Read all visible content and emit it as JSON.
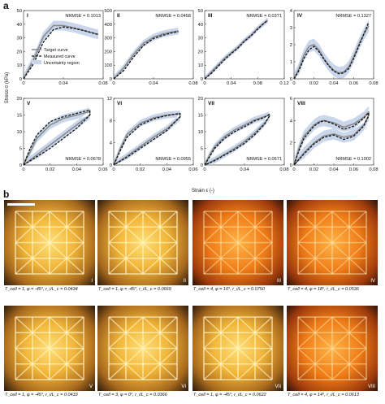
{
  "panel_a_label": "a",
  "panel_b_label": "b",
  "y_axis_label": "Stress σ (kPa)",
  "x_axis_label": "Strain ε (-)",
  "legend": [
    "Target curve",
    "Measured curve",
    "Uncertainty region"
  ],
  "colors": {
    "target": "#8a8a8a",
    "measured": "#111111",
    "uncertainty": "#c9d6ec"
  },
  "chart_data": [
    {
      "type": "line",
      "panel": "I",
      "nrmse_label": "NRMSE = 0.1013",
      "nrmse_pos": "top-right",
      "xlim": [
        0,
        0.08
      ],
      "xticks": [
        "0",
        "0.04",
        "0.08"
      ],
      "xtickvals": [
        0,
        0.04,
        0.08
      ],
      "ylim": [
        0,
        50
      ],
      "yticks": [
        "0",
        "10",
        "20",
        "30",
        "40",
        "50"
      ],
      "ytickvals": [
        0,
        10,
        20,
        30,
        40,
        50
      ],
      "show_xticks": false,
      "target": [
        [
          0,
          0
        ],
        [
          0.01,
          14
        ],
        [
          0.02,
          31
        ],
        [
          0.03,
          39
        ],
        [
          0.04,
          39
        ],
        [
          0.05,
          37.5
        ],
        [
          0.06,
          35.5
        ],
        [
          0.07,
          33.5
        ],
        [
          0.075,
          32.5
        ]
      ],
      "measured": [
        [
          0,
          0
        ],
        [
          0.01,
          11
        ],
        [
          0.02,
          27
        ],
        [
          0.03,
          36
        ],
        [
          0.04,
          38
        ],
        [
          0.05,
          37
        ],
        [
          0.06,
          35.5
        ],
        [
          0.07,
          33.5
        ],
        [
          0.075,
          32.5
        ]
      ],
      "band": 3.5,
      "legend": true
    },
    {
      "type": "line",
      "panel": "II",
      "nrmse_label": "NRMSE = 0.0458",
      "nrmse_pos": "top-right",
      "xlim": [
        0,
        0.08
      ],
      "xticks": [
        "0",
        "0.04",
        "0.08"
      ],
      "xtickvals": [
        0,
        0.04,
        0.08
      ],
      "ylim": [
        0,
        500
      ],
      "yticks": [
        "0",
        "100",
        "200",
        "300",
        "400",
        "500"
      ],
      "ytickvals": [
        0,
        100,
        200,
        300,
        400,
        500
      ],
      "show_xticks": false,
      "target": [
        [
          0,
          0
        ],
        [
          0.01,
          80
        ],
        [
          0.02,
          180
        ],
        [
          0.03,
          260
        ],
        [
          0.04,
          305
        ],
        [
          0.05,
          330
        ],
        [
          0.06,
          345
        ],
        [
          0.065,
          350
        ]
      ],
      "measured": [
        [
          0,
          0
        ],
        [
          0.01,
          60
        ],
        [
          0.02,
          160
        ],
        [
          0.03,
          245
        ],
        [
          0.04,
          295
        ],
        [
          0.05,
          320
        ],
        [
          0.06,
          340
        ],
        [
          0.065,
          345
        ]
      ],
      "band": 25
    },
    {
      "type": "line",
      "panel": "III",
      "nrmse_label": "NRMSE = 0.0371",
      "nrmse_pos": "top-right",
      "xlim": [
        0,
        0.12
      ],
      "xticks": [
        "0",
        "0.04",
        "0.08",
        "0.12"
      ],
      "xtickvals": [
        0,
        0.04,
        0.08,
        0.12
      ],
      "ylim": [
        0,
        50
      ],
      "yticks": [
        "0",
        "10",
        "20",
        "30",
        "40",
        "50"
      ],
      "ytickvals": [
        0,
        10,
        20,
        30,
        40,
        50
      ],
      "show_xticks": false,
      "target": [
        [
          0,
          0
        ],
        [
          0.01,
          5
        ],
        [
          0.02,
          10
        ],
        [
          0.03,
          15
        ],
        [
          0.04,
          19
        ],
        [
          0.05,
          23
        ],
        [
          0.06,
          28
        ],
        [
          0.07,
          32
        ],
        [
          0.08,
          37
        ],
        [
          0.09,
          41
        ],
        [
          0.095,
          43
        ]
      ],
      "measured": [
        [
          0,
          0
        ],
        [
          0.01,
          4
        ],
        [
          0.02,
          9
        ],
        [
          0.03,
          14
        ],
        [
          0.04,
          18.5
        ],
        [
          0.05,
          22.5
        ],
        [
          0.06,
          27.5
        ],
        [
          0.07,
          31.5
        ],
        [
          0.08,
          36.5
        ],
        [
          0.09,
          41
        ],
        [
          0.095,
          42.5
        ]
      ],
      "band": 2
    },
    {
      "type": "line",
      "panel": "IV",
      "nrmse_label": "NRMSE = 0.1327",
      "nrmse_pos": "top-right",
      "xlim": [
        0,
        0.08
      ],
      "xticks": [
        "0",
        "0.02",
        "0.04",
        "0.06",
        "0.08"
      ],
      "xtickvals": [
        0,
        0.02,
        0.04,
        0.06,
        0.08
      ],
      "ylim": [
        0,
        4
      ],
      "yticks": [
        "0",
        "1",
        "2",
        "3",
        "4"
      ],
      "ytickvals": [
        0,
        1,
        2,
        3,
        4
      ],
      "show_xticks": true,
      "target": [
        [
          0,
          0
        ],
        [
          0.005,
          0.6
        ],
        [
          0.01,
          1.4
        ],
        [
          0.015,
          1.9
        ],
        [
          0.02,
          2.0
        ],
        [
          0.025,
          1.7
        ],
        [
          0.03,
          1.2
        ],
        [
          0.035,
          0.8
        ],
        [
          0.04,
          0.5
        ],
        [
          0.045,
          0.35
        ],
        [
          0.05,
          0.4
        ],
        [
          0.055,
          0.7
        ],
        [
          0.06,
          1.3
        ],
        [
          0.065,
          2.0
        ],
        [
          0.07,
          2.6
        ],
        [
          0.075,
          3.1
        ]
      ],
      "measured": [
        [
          0,
          0
        ],
        [
          0.005,
          0.5
        ],
        [
          0.01,
          1.2
        ],
        [
          0.015,
          1.7
        ],
        [
          0.02,
          1.9
        ],
        [
          0.025,
          1.6
        ],
        [
          0.03,
          1.15
        ],
        [
          0.035,
          0.75
        ],
        [
          0.04,
          0.45
        ],
        [
          0.045,
          0.3
        ],
        [
          0.05,
          0.35
        ],
        [
          0.055,
          0.6
        ],
        [
          0.06,
          1.2
        ],
        [
          0.065,
          1.9
        ],
        [
          0.07,
          2.6
        ],
        [
          0.075,
          3.3
        ]
      ],
      "band": 0.35
    },
    {
      "type": "line",
      "panel": "V",
      "nrmse_label": "NRMSE = 0.0678",
      "nrmse_pos": "bottom-right",
      "xlim": [
        0,
        0.06
      ],
      "xticks": [
        "0",
        "0.02",
        "0.04",
        "0.06"
      ],
      "xtickvals": [
        0,
        0.02,
        0.04,
        0.06
      ],
      "ylim": [
        0,
        20
      ],
      "yticks": [
        "0",
        "5",
        "10",
        "15",
        "20"
      ],
      "ytickvals": [
        0,
        5,
        10,
        15,
        20
      ],
      "show_xticks": true,
      "target_loop": [
        [
          0,
          0
        ],
        [
          0.005,
          4
        ],
        [
          0.01,
          8
        ],
        [
          0.02,
          12
        ],
        [
          0.03,
          14
        ],
        [
          0.04,
          15
        ],
        [
          0.05,
          16
        ],
        [
          0.05,
          15
        ],
        [
          0.04,
          12
        ],
        [
          0.03,
          9
        ],
        [
          0.02,
          6
        ],
        [
          0.01,
          3
        ],
        [
          0,
          0
        ]
      ],
      "measured_loop": [
        [
          0,
          0
        ],
        [
          0.005,
          5
        ],
        [
          0.01,
          9
        ],
        [
          0.02,
          13
        ],
        [
          0.03,
          14.5
        ],
        [
          0.04,
          15.5
        ],
        [
          0.05,
          16.5
        ],
        [
          0.05,
          15
        ],
        [
          0.04,
          11
        ],
        [
          0.03,
          8
        ],
        [
          0.02,
          5
        ],
        [
          0.01,
          2.5
        ],
        [
          0,
          0
        ]
      ],
      "band": 1.2
    },
    {
      "type": "line",
      "panel": "VI",
      "nrmse_label": "NRMSE = 0.0955",
      "nrmse_pos": "bottom-right",
      "xlim": [
        0,
        0.06
      ],
      "xticks": [
        "0",
        "0.02",
        "0.04",
        "0.06"
      ],
      "xtickvals": [
        0,
        0.02,
        0.04,
        0.06
      ],
      "ylim": [
        0,
        12
      ],
      "yticks": [
        "0",
        "4",
        "8",
        "12"
      ],
      "ytickvals": [
        0,
        4,
        8,
        12
      ],
      "show_xticks": true,
      "target_loop": [
        [
          0,
          0
        ],
        [
          0.005,
          3
        ],
        [
          0.01,
          5.5
        ],
        [
          0.02,
          7.5
        ],
        [
          0.03,
          8.5
        ],
        [
          0.04,
          9
        ],
        [
          0.05,
          9.2
        ],
        [
          0.05,
          8.6
        ],
        [
          0.04,
          6.5
        ],
        [
          0.03,
          5
        ],
        [
          0.02,
          3.3
        ],
        [
          0.01,
          1.6
        ],
        [
          0,
          0
        ]
      ],
      "measured_loop": [
        [
          0,
          0
        ],
        [
          0.005,
          2.6
        ],
        [
          0.01,
          5
        ],
        [
          0.02,
          7.2
        ],
        [
          0.03,
          8.3
        ],
        [
          0.04,
          8.9
        ],
        [
          0.05,
          9.3
        ],
        [
          0.05,
          8.7
        ],
        [
          0.04,
          6.2
        ],
        [
          0.03,
          4.6
        ],
        [
          0.02,
          3
        ],
        [
          0.01,
          1.4
        ],
        [
          0,
          0
        ]
      ],
      "band": 0.6
    },
    {
      "type": "line",
      "panel": "VII",
      "nrmse_label": "NRMSE = 0.0671",
      "nrmse_pos": "bottom-right",
      "xlim": [
        0,
        0.08
      ],
      "xticks": [
        "0",
        "0.04",
        "0.08"
      ],
      "xtickvals": [
        0,
        0.04,
        0.08
      ],
      "ylim": [
        0,
        20
      ],
      "yticks": [
        "0",
        "5",
        "10",
        "15",
        "20"
      ],
      "ytickvals": [
        0,
        5,
        10,
        15,
        20
      ],
      "show_xticks": true,
      "target_loop": [
        [
          0,
          0
        ],
        [
          0.005,
          3
        ],
        [
          0.01,
          5.5
        ],
        [
          0.02,
          8.5
        ],
        [
          0.03,
          10.5
        ],
        [
          0.04,
          12
        ],
        [
          0.05,
          13.5
        ],
        [
          0.06,
          14.5
        ],
        [
          0.065,
          15
        ],
        [
          0.065,
          14.5
        ],
        [
          0.06,
          12.5
        ],
        [
          0.05,
          9.5
        ],
        [
          0.04,
          7
        ],
        [
          0.03,
          5
        ],
        [
          0.02,
          3.2
        ],
        [
          0.01,
          1.5
        ],
        [
          0,
          0
        ]
      ],
      "measured_loop": [
        [
          0,
          0
        ],
        [
          0.005,
          2.5
        ],
        [
          0.01,
          5
        ],
        [
          0.02,
          8
        ],
        [
          0.03,
          10
        ],
        [
          0.04,
          11.5
        ],
        [
          0.05,
          13.2
        ],
        [
          0.06,
          14.3
        ],
        [
          0.065,
          15.2
        ],
        [
          0.065,
          14.7
        ],
        [
          0.06,
          12.2
        ],
        [
          0.05,
          9
        ],
        [
          0.04,
          6.5
        ],
        [
          0.03,
          4.6
        ],
        [
          0.02,
          3
        ],
        [
          0.01,
          1.3
        ],
        [
          0,
          0
        ]
      ],
      "band": 1.0
    },
    {
      "type": "line",
      "panel": "VIII",
      "nrmse_label": "NRMSE = 0.1002",
      "nrmse_pos": "bottom-right",
      "xlim": [
        0,
        0.08
      ],
      "xticks": [
        "0",
        "0.02",
        "0.04",
        "0.06",
        "0.08"
      ],
      "xtickvals": [
        0,
        0.02,
        0.04,
        0.06,
        0.08
      ],
      "ylim": [
        0,
        6
      ],
      "yticks": [
        "0",
        "2",
        "4",
        "6"
      ],
      "ytickvals": [
        0,
        2,
        4,
        6
      ],
      "show_xticks": true,
      "target_loop": [
        [
          0,
          0
        ],
        [
          0.005,
          1.5
        ],
        [
          0.01,
          2.6
        ],
        [
          0.02,
          3.6
        ],
        [
          0.025,
          3.9
        ],
        [
          0.03,
          4.0
        ],
        [
          0.04,
          3.8
        ],
        [
          0.05,
          3.4
        ],
        [
          0.06,
          3.7
        ],
        [
          0.07,
          4.3
        ],
        [
          0.075,
          4.8
        ],
        [
          0.075,
          4.5
        ],
        [
          0.07,
          3.6
        ],
        [
          0.06,
          2.7
        ],
        [
          0.05,
          2.5
        ],
        [
          0.04,
          2.8
        ],
        [
          0.03,
          2.6
        ],
        [
          0.02,
          2.0
        ],
        [
          0.01,
          1.1
        ],
        [
          0,
          0
        ]
      ],
      "measured_loop": [
        [
          0,
          0
        ],
        [
          0.005,
          1.3
        ],
        [
          0.01,
          2.4
        ],
        [
          0.02,
          3.5
        ],
        [
          0.025,
          3.8
        ],
        [
          0.03,
          4.0
        ],
        [
          0.04,
          3.7
        ],
        [
          0.05,
          3.2
        ],
        [
          0.06,
          3.5
        ],
        [
          0.07,
          4.2
        ],
        [
          0.075,
          4.7
        ],
        [
          0.075,
          4.4
        ],
        [
          0.07,
          3.5
        ],
        [
          0.06,
          2.6
        ],
        [
          0.05,
          2.3
        ],
        [
          0.04,
          2.7
        ],
        [
          0.03,
          2.5
        ],
        [
          0.02,
          1.9
        ],
        [
          0.01,
          1.0
        ],
        [
          0,
          0
        ]
      ],
      "band": 0.5
    }
  ],
  "photos": [
    {
      "roman": "I",
      "caption": "T_cell = 1, φ = -45°, r_i/L_c = 0.0434",
      "tone": "yellow"
    },
    {
      "roman": "II",
      "caption": "T_cell = 1, φ = -45°, r_i/L_c = 0.0669",
      "tone": "yellow"
    },
    {
      "roman": "III",
      "caption": "T_cell = 4, φ = 10°, r_i/L_c = 0.0750",
      "tone": "orange"
    },
    {
      "roman": "IV",
      "caption": "T_cell = 4, φ = 18°, r_i/L_c = 0.0536",
      "tone": "orange"
    },
    {
      "roman": "V",
      "caption": "T_cell = 1, φ = -45°, r_i/L_c = 0.0433",
      "tone": "yellow"
    },
    {
      "roman": "VI",
      "caption": "T_cell = 3, φ = 0°, r_i/L_c = 0.0366",
      "tone": "yellow"
    },
    {
      "roman": "VII",
      "caption": "T_cell = 1, φ = -45°, r_i/L_c = 0.0622",
      "tone": "yellow"
    },
    {
      "roman": "VIII",
      "caption": "T_cell = 4, φ = 14°, r_i/L_c = 0.0613",
      "tone": "orange"
    }
  ]
}
